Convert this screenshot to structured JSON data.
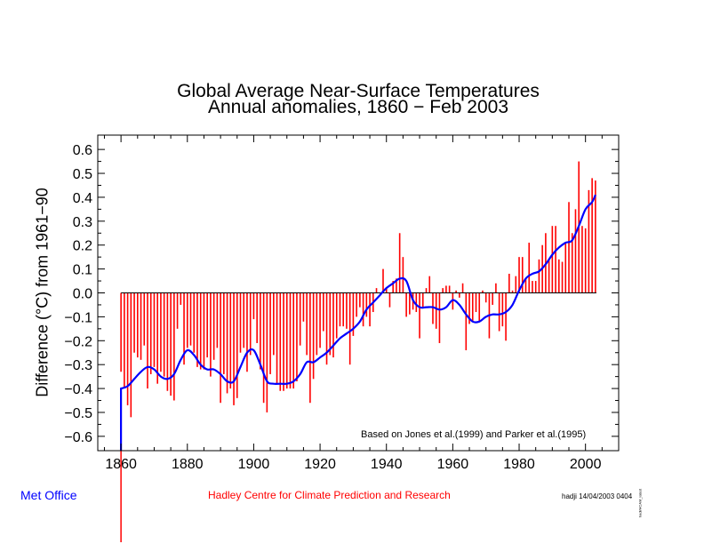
{
  "chart_data": {
    "type": "bar",
    "title": "Global Average Near-Surface Temperatures",
    "subtitle": "Annual anomalies, 1860 − Feb 2003",
    "ylabel": "Difference (°C) from 1961−90",
    "xlabel": "",
    "xlim": [
      1853,
      2010
    ],
    "ylim": [
      -0.66,
      0.66
    ],
    "xticks": [
      1860,
      1880,
      1900,
      1920,
      1940,
      1960,
      1980,
      2000
    ],
    "yticks": [
      "0.6",
      "0.5",
      "0.4",
      "0.3",
      "0.2",
      "0.1",
      "0.0",
      "−0.1",
      "−0.2",
      "−0.3",
      "−0.4",
      "−0.5",
      "−0.6"
    ],
    "ytick_values": [
      0.6,
      0.5,
      0.4,
      0.3,
      0.2,
      0.1,
      0.0,
      -0.1,
      -0.2,
      -0.3,
      -0.4,
      -0.5,
      -0.6
    ],
    "grid": false,
    "bar_series": {
      "name": "",
      "color": "#ff0000",
      "x": [
        1860,
        1861,
        1862,
        1863,
        1864,
        1865,
        1866,
        1867,
        1868,
        1869,
        1870,
        1871,
        1872,
        1873,
        1874,
        1875,
        1876,
        1877,
        1878,
        1879,
        1880,
        1881,
        1882,
        1883,
        1884,
        1885,
        1886,
        1887,
        1888,
        1889,
        1890,
        1891,
        1892,
        1893,
        1894,
        1895,
        1896,
        1897,
        1898,
        1899,
        1900,
        1901,
        1902,
        1903,
        1904,
        1905,
        1906,
        1907,
        1908,
        1909,
        1910,
        1911,
        1912,
        1913,
        1914,
        1915,
        1916,
        1917,
        1918,
        1919,
        1920,
        1921,
        1922,
        1923,
        1924,
        1925,
        1926,
        1927,
        1928,
        1929,
        1930,
        1931,
        1932,
        1933,
        1934,
        1935,
        1936,
        1937,
        1938,
        1939,
        1940,
        1941,
        1942,
        1943,
        1944,
        1945,
        1946,
        1947,
        1948,
        1949,
        1950,
        1951,
        1952,
        1953,
        1954,
        1955,
        1956,
        1957,
        1958,
        1959,
        1960,
        1961,
        1962,
        1963,
        1964,
        1965,
        1966,
        1967,
        1968,
        1969,
        1970,
        1971,
        1972,
        1973,
        1974,
        1975,
        1976,
        1977,
        1978,
        1979,
        1980,
        1981,
        1982,
        1983,
        1984,
        1985,
        1986,
        1987,
        1988,
        1989,
        1990,
        1991,
        1992,
        1993,
        1994,
        1995,
        1996,
        1997,
        1998,
        1999,
        2000,
        2001,
        2002,
        2003
      ],
      "values": [
        -0.33,
        -0.4,
        -0.47,
        -0.52,
        -0.25,
        -0.27,
        -0.28,
        -0.22,
        -0.4,
        -0.34,
        -0.31,
        -0.38,
        -0.33,
        -0.35,
        -0.41,
        -0.43,
        -0.45,
        -0.15,
        -0.05,
        -0.3,
        -0.23,
        -0.22,
        -0.25,
        -0.31,
        -0.32,
        -0.32,
        -0.27,
        -0.35,
        -0.28,
        -0.23,
        -0.46,
        -0.34,
        -0.42,
        -0.4,
        -0.47,
        -0.44,
        -0.25,
        -0.23,
        -0.33,
        -0.26,
        -0.11,
        -0.21,
        -0.32,
        -0.46,
        -0.5,
        -0.34,
        -0.26,
        -0.38,
        -0.41,
        -0.41,
        -0.4,
        -0.4,
        -0.4,
        -0.37,
        -0.22,
        -0.12,
        -0.26,
        -0.46,
        -0.36,
        -0.26,
        -0.23,
        -0.16,
        -0.3,
        -0.26,
        -0.27,
        -0.19,
        -0.14,
        -0.14,
        -0.15,
        -0.3,
        -0.18,
        -0.1,
        -0.06,
        -0.14,
        -0.1,
        -0.14,
        -0.08,
        0.02,
        0.0,
        0.1,
        0.02,
        -0.06,
        0.05,
        0.06,
        0.25,
        0.15,
        -0.1,
        -0.09,
        -0.07,
        -0.08,
        -0.19,
        -0.06,
        0.02,
        0.07,
        -0.13,
        -0.15,
        -0.21,
        0.02,
        0.03,
        0.03,
        -0.07,
        0.01,
        -0.02,
        0.04,
        -0.24,
        -0.13,
        -0.12,
        -0.08,
        -0.12,
        0.01,
        -0.04,
        -0.19,
        -0.05,
        0.04,
        -0.16,
        -0.14,
        -0.2,
        0.08,
        0.01,
        0.07,
        0.15,
        0.15,
        0.06,
        0.21,
        0.05,
        0.05,
        0.14,
        0.2,
        0.25,
        0.14,
        0.28,
        0.28,
        0.14,
        0.13,
        0.21,
        0.38,
        0.25,
        0.35,
        0.55,
        0.28,
        0.27,
        0.43,
        0.48,
        0.47
      ]
    },
    "line_series": {
      "name": "",
      "color": "#0000ff",
      "x": [
        1860,
        1862,
        1864,
        1866,
        1868,
        1870,
        1872,
        1874,
        1876,
        1878,
        1880,
        1882,
        1884,
        1886,
        1888,
        1890,
        1892,
        1894,
        1896,
        1898,
        1900,
        1902,
        1904,
        1906,
        1908,
        1910,
        1912,
        1914,
        1916,
        1918,
        1920,
        1922,
        1924,
        1926,
        1928,
        1930,
        1932,
        1934,
        1936,
        1938,
        1940,
        1942,
        1944,
        1946,
        1948,
        1950,
        1952,
        1954,
        1956,
        1958,
        1960,
        1962,
        1964,
        1966,
        1968,
        1970,
        1972,
        1974,
        1976,
        1978,
        1980,
        1982,
        1984,
        1986,
        1988,
        1990,
        1992,
        1994,
        1996,
        1998,
        2000,
        2002
      ],
      "values": [
        -0.4,
        -0.39,
        -0.36,
        -0.33,
        -0.31,
        -0.32,
        -0.35,
        -0.36,
        -0.34,
        -0.28,
        -0.24,
        -0.26,
        -0.3,
        -0.32,
        -0.32,
        -0.34,
        -0.37,
        -0.37,
        -0.31,
        -0.25,
        -0.24,
        -0.3,
        -0.37,
        -0.38,
        -0.38,
        -0.38,
        -0.37,
        -0.34,
        -0.29,
        -0.29,
        -0.27,
        -0.25,
        -0.22,
        -0.19,
        -0.17,
        -0.15,
        -0.12,
        -0.07,
        -0.04,
        -0.01,
        0.02,
        0.04,
        0.06,
        0.05,
        -0.03,
        -0.06,
        -0.06,
        -0.06,
        -0.07,
        -0.06,
        -0.03,
        -0.05,
        -0.09,
        -0.12,
        -0.12,
        -0.1,
        -0.09,
        -0.09,
        -0.08,
        -0.05,
        0.01,
        0.06,
        0.08,
        0.09,
        0.12,
        0.16,
        0.19,
        0.21,
        0.22,
        0.28,
        0.35,
        0.38
      ],
      "end_value": 0.41,
      "drop_from_value": -0.4
    },
    "annotation": "Based on Jones et al.(1999) and Parker et al.(1995)"
  },
  "footer": {
    "left": "Met Office",
    "center": "Hadley Centre for Climate Prediction and Research",
    "right": "hadji  14/04/2003 0404",
    "tiny": "hadi/HCAM_latest"
  }
}
